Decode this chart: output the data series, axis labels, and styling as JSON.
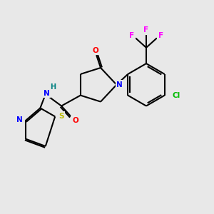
{
  "background_color": "#e8e8e8",
  "bond_color": "#000000",
  "atom_colors": {
    "O": "#ff0000",
    "N": "#0000ff",
    "S": "#bbbb00",
    "Cl": "#00bb00",
    "F": "#ff00ff",
    "H": "#008080",
    "C": "#000000"
  }
}
